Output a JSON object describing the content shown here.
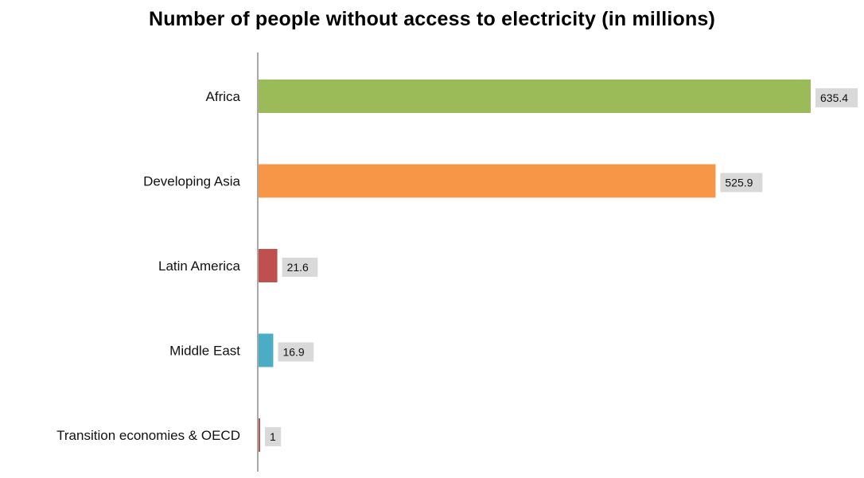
{
  "chart_data": {
    "type": "bar",
    "orientation": "horizontal",
    "title": "Number of people without access to electricity (in millions)",
    "categories": [
      "Africa",
      "Developing Asia",
      "Latin America",
      "Middle East",
      "Transition economies & OECD"
    ],
    "values": [
      635.4,
      525.9,
      21.6,
      16.9,
      1
    ],
    "value_labels": [
      "635.4",
      "525.9",
      "21.6",
      "16.9",
      "1"
    ],
    "colors": [
      "#9bbb59",
      "#f79646",
      "#c0504d",
      "#4bacc6",
      "#c0504d"
    ],
    "xlabel": "",
    "ylabel": "",
    "xlim": [
      0,
      635.4
    ],
    "grid": false,
    "legend": "none"
  }
}
